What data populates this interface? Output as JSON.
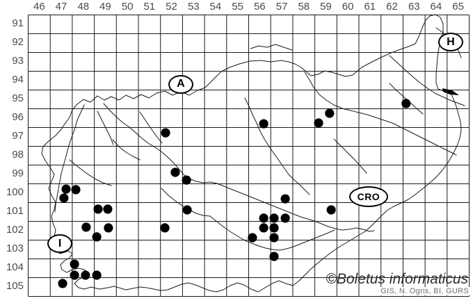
{
  "map": {
    "col_labels": [
      "46",
      "47",
      "48",
      "49",
      "50",
      "51",
      "52",
      "53",
      "54",
      "55",
      "56",
      "57",
      "58",
      "59",
      "60",
      "61",
      "62",
      "63",
      "64",
      "65"
    ],
    "row_labels": [
      "91",
      "92",
      "93",
      "94",
      "95",
      "96",
      "97",
      "98",
      "99",
      "100",
      "101",
      "102",
      "103",
      "104",
      "105"
    ],
    "countries": [
      {
        "code": "A",
        "col": 52.92,
        "row": 94.69
      },
      {
        "code": "H",
        "col": 65.16,
        "row": 92.46
      },
      {
        "code": "I",
        "col": 47.44,
        "row": 103.2
      },
      {
        "code": "CRO",
        "col": 61.44,
        "row": 100.69
      }
    ],
    "occurrences": [
      {
        "col": 52.23,
        "row": 97.28
      },
      {
        "col": 52.67,
        "row": 99.39
      },
      {
        "col": 53.18,
        "row": 99.8
      },
      {
        "col": 47.72,
        "row": 100.28
      },
      {
        "col": 48.16,
        "row": 100.31
      },
      {
        "col": 47.62,
        "row": 100.76
      },
      {
        "col": 49.17,
        "row": 101.35
      },
      {
        "col": 49.61,
        "row": 101.35
      },
      {
        "col": 53.21,
        "row": 101.39
      },
      {
        "col": 48.63,
        "row": 102.31
      },
      {
        "col": 49.64,
        "row": 102.35
      },
      {
        "col": 52.2,
        "row": 102.35
      },
      {
        "col": 49.11,
        "row": 102.83
      },
      {
        "col": 48.1,
        "row": 104.28
      },
      {
        "col": 48.1,
        "row": 104.87
      },
      {
        "col": 48.6,
        "row": 104.87
      },
      {
        "col": 49.11,
        "row": 104.87
      },
      {
        "col": 47.56,
        "row": 105.31
      },
      {
        "col": 56.68,
        "row": 96.8
      },
      {
        "col": 59.17,
        "row": 96.76
      },
      {
        "col": 59.67,
        "row": 96.24
      },
      {
        "col": 63.14,
        "row": 95.72
      },
      {
        "col": 57.66,
        "row": 100.8
      },
      {
        "col": 59.74,
        "row": 101.39
      },
      {
        "col": 56.68,
        "row": 101.83
      },
      {
        "col": 57.15,
        "row": 101.83
      },
      {
        "col": 57.66,
        "row": 101.83
      },
      {
        "col": 56.68,
        "row": 102.35
      },
      {
        "col": 57.15,
        "row": 102.35
      },
      {
        "col": 56.17,
        "row": 102.87
      },
      {
        "col": 57.15,
        "row": 102.87
      },
      {
        "col": 57.15,
        "row": 103.87
      }
    ]
  },
  "watermark": "©Boletus informaticus",
  "credits": "GIS, N. Ogris, BI, GURS",
  "colors": {
    "line": "#1a1a1a",
    "art": "#1a1a1a",
    "dot": "#000000",
    "label": "#4a4a4a",
    "background": "#ffffff"
  }
}
